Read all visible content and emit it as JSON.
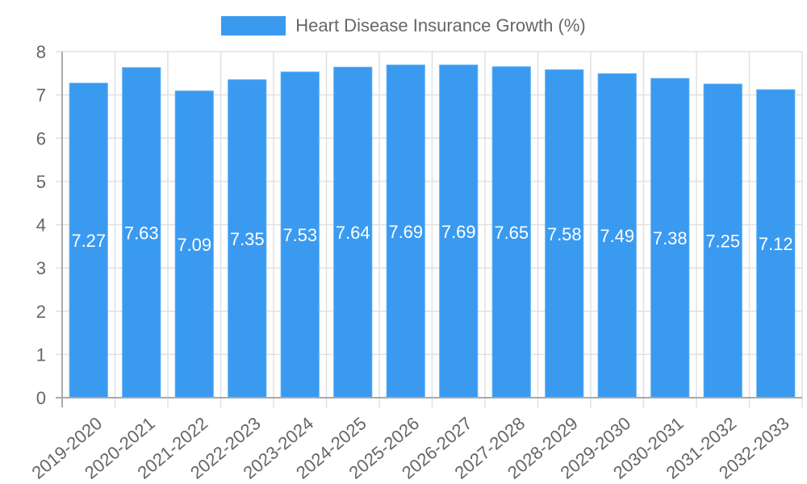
{
  "chart_data": {
    "type": "bar",
    "title": "",
    "legend": [
      {
        "label": "Heart Disease Insurance Growth (%)",
        "color": "#3a9af0"
      }
    ],
    "legend_position": "top",
    "categories": [
      "2019-2020",
      "2020-2021",
      "2021-2022",
      "2022-2023",
      "2023-2024",
      "2024-2025",
      "2025-2026",
      "2026-2027",
      "2027-2028",
      "2028-2029",
      "2029-2030",
      "2030-2031",
      "2031-2032",
      "2032-2033"
    ],
    "series": [
      {
        "name": "Heart Disease Insurance Growth (%)",
        "values": [
          7.27,
          7.63,
          7.09,
          7.35,
          7.53,
          7.64,
          7.69,
          7.69,
          7.65,
          7.58,
          7.49,
          7.38,
          7.25,
          7.12
        ],
        "color": "#3a9af0"
      }
    ],
    "data_labels": true,
    "xlabel": "",
    "ylabel": "",
    "ylim": [
      0,
      8
    ],
    "yticks": [
      0,
      1,
      2,
      3,
      4,
      5,
      6,
      7,
      8
    ],
    "grid": true
  }
}
